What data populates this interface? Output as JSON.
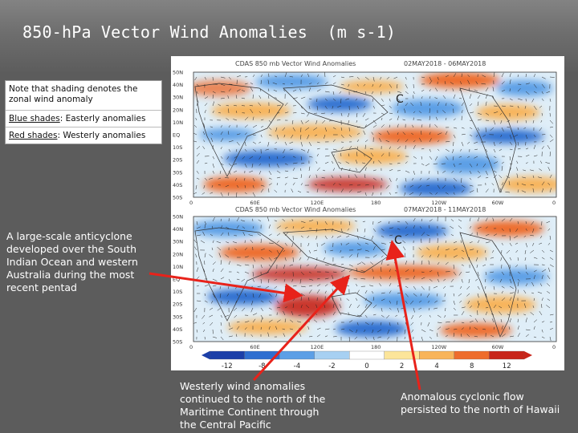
{
  "slide": {
    "title": "850-hPa Vector Wind Anomalies  (m s-1)"
  },
  "note_box": {
    "intro": "Note that shading denotes the zonal wind anomaly",
    "blue_label": "Blue shades",
    "blue_text": ": Easterly anomalies",
    "red_label": "Red shades",
    "red_text": ": Westerly anomalies"
  },
  "annotations": {
    "anticyclone": "A large-scale anticyclone developed over the South Indian Ocean and western Australia during the most recent pentad",
    "westerly": "Westerly wind anomalies continued to the north of the Maritime Continent through the Central Pacific",
    "cyclonic": "Anomalous cyclonic flow persisted to the north of Hawaii"
  },
  "maps": {
    "top": {
      "header_left": "CDAS 850 mb Vector Wind Anomalies",
      "header_right": "02MAY2018 - 06MAY2018",
      "x_ticks": [
        "0",
        "60E",
        "120E",
        "180",
        "120W",
        "60W",
        "0"
      ],
      "y_ticks": [
        "50N",
        "40N",
        "30N",
        "20N",
        "10N",
        "EQ",
        "10S",
        "20S",
        "30S",
        "40S",
        "50S"
      ],
      "markers": [
        "C"
      ]
    },
    "bottom": {
      "header_left": "CDAS 850 mb Vector Wind Anomalies",
      "header_right": "07MAY2018 - 11MAY2018",
      "x_ticks": [
        "0",
        "60E",
        "120E",
        "180",
        "120W",
        "60W",
        "0"
      ],
      "y_ticks": [
        "50N",
        "40N",
        "30N",
        "20N",
        "10N",
        "EQ",
        "10S",
        "20S",
        "30S",
        "40S",
        "50S"
      ],
      "markers": [
        "C"
      ]
    }
  },
  "colorbar": {
    "labels": [
      "-12",
      "-8",
      "-4",
      "-2",
      "0",
      "2",
      "4",
      "8",
      "12"
    ],
    "colors": [
      "#1c3fa8",
      "#2f6fd0",
      "#5c9fe6",
      "#a7d0f2",
      "#ffffff",
      "#fce59a",
      "#f8b45a",
      "#ee6c2c",
      "#c8251a"
    ]
  },
  "colors": {
    "arrow": "#e8221a",
    "background": "#5c5c5c"
  }
}
